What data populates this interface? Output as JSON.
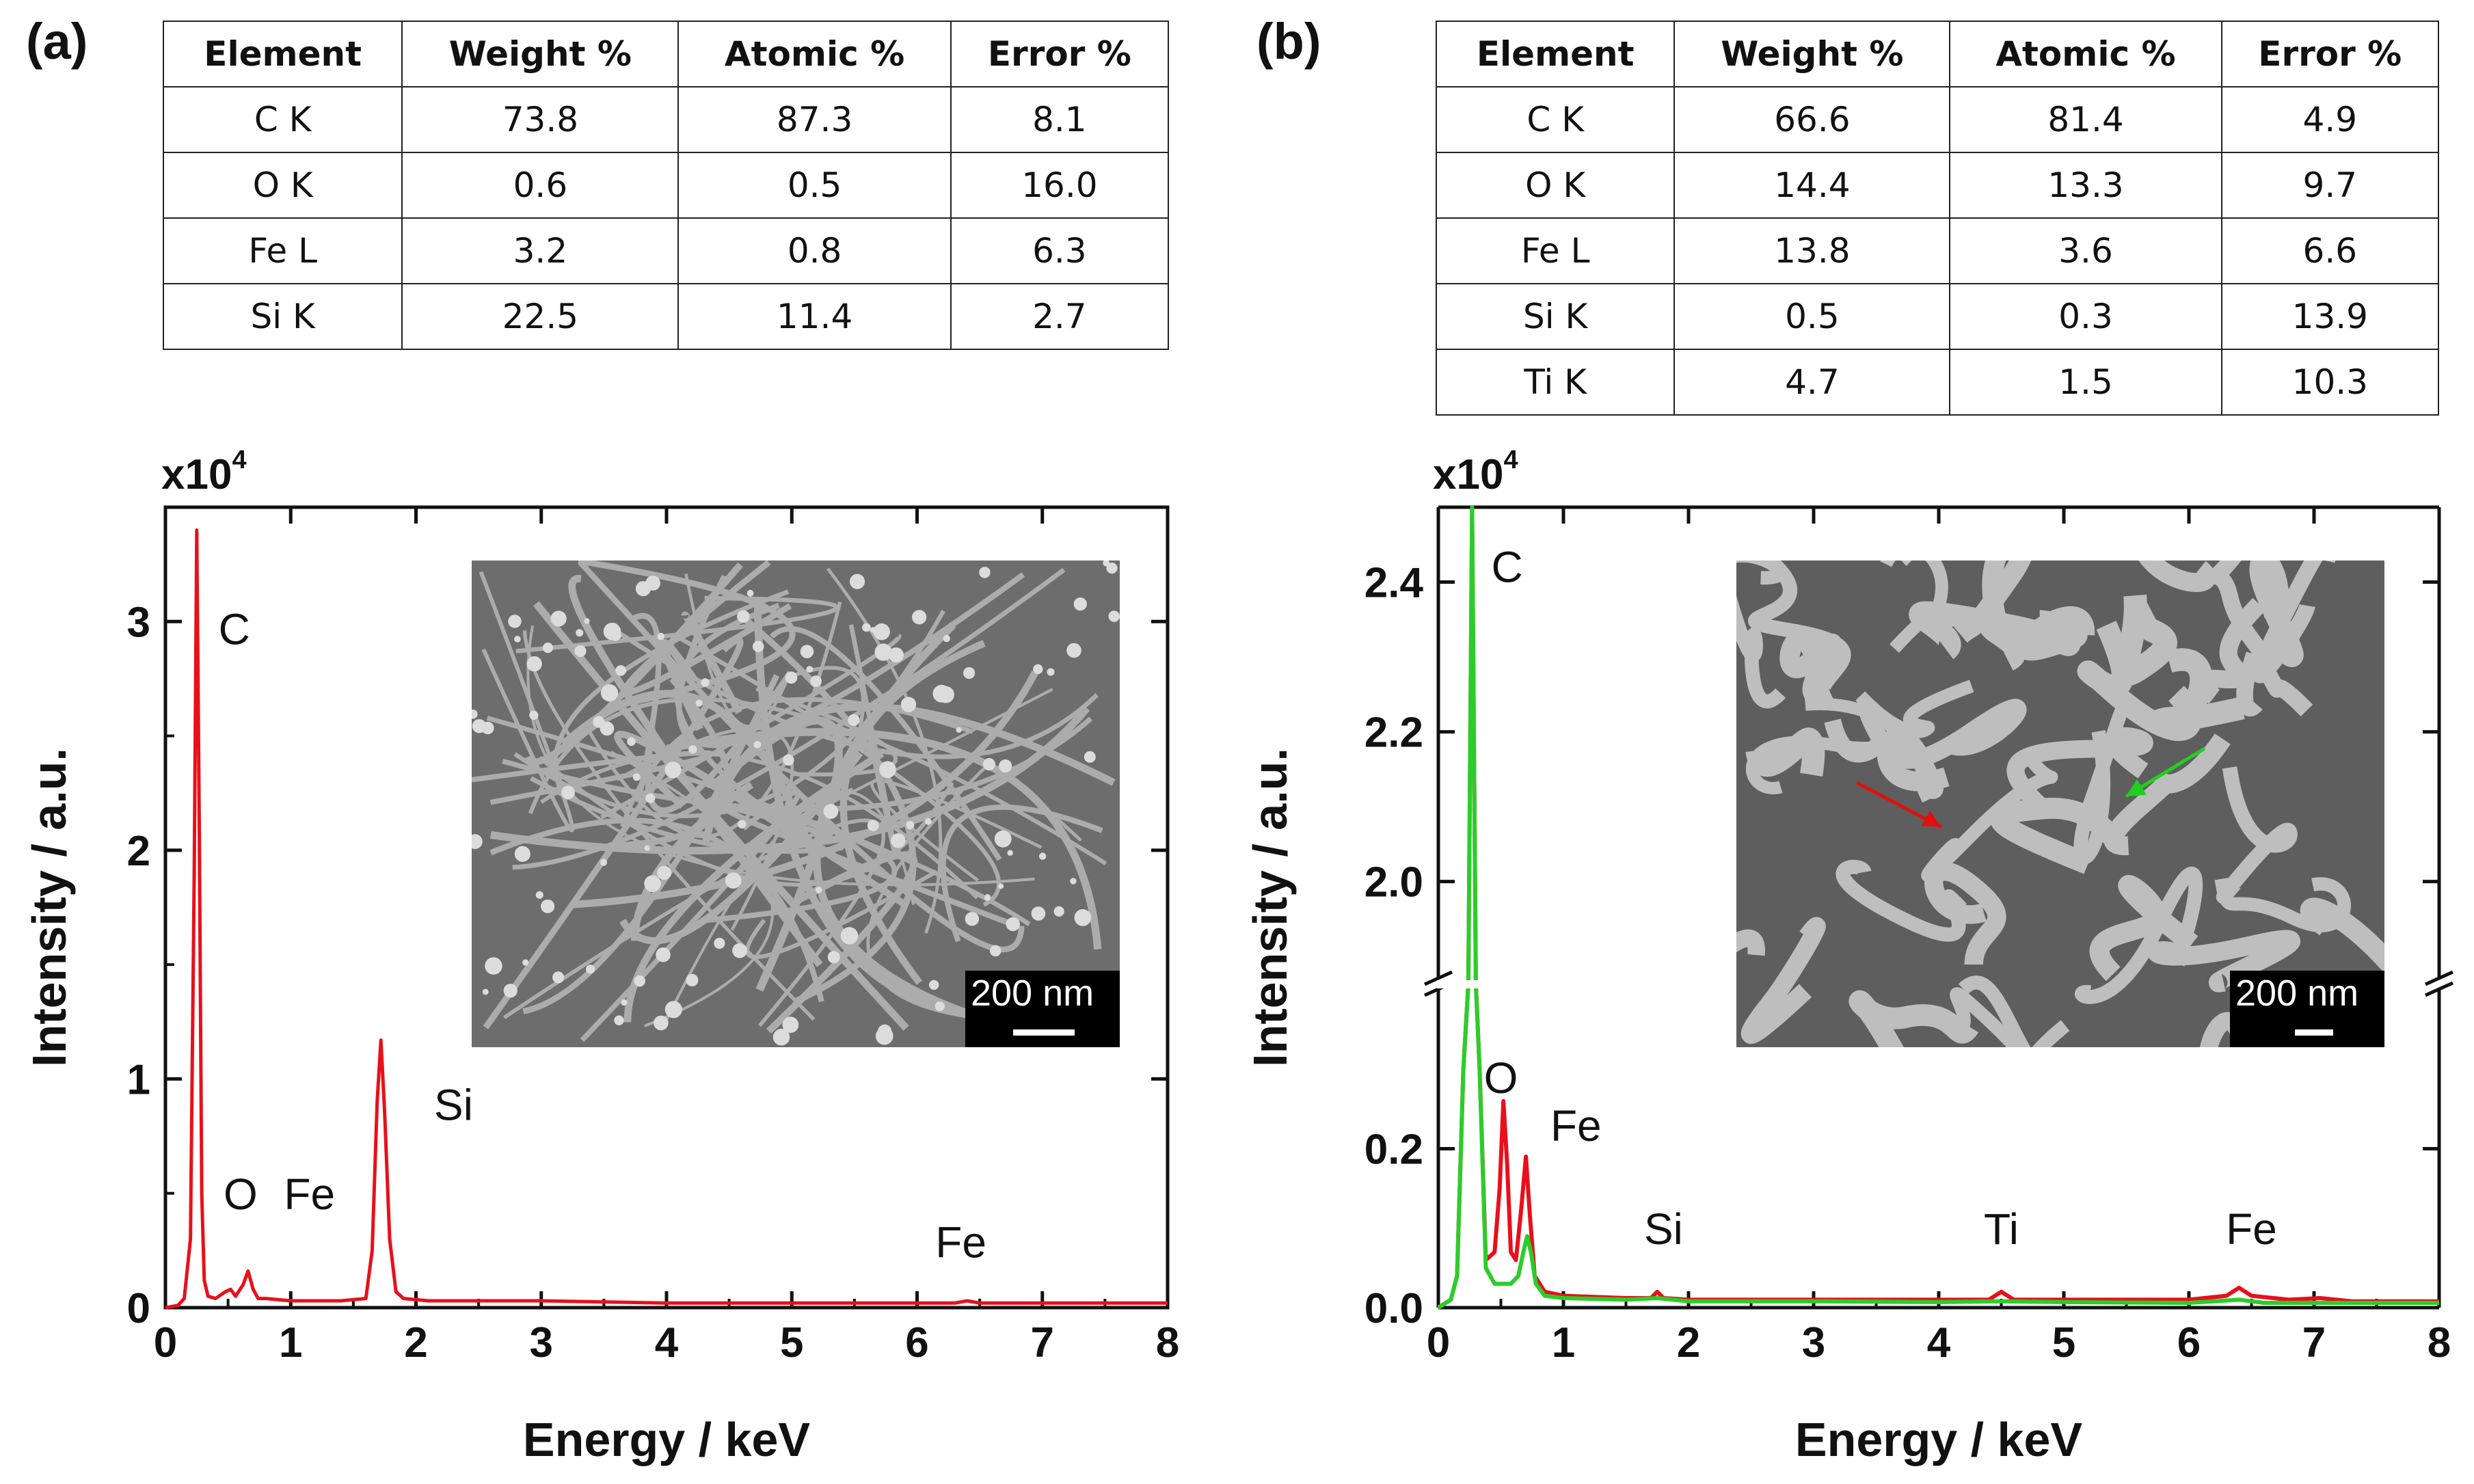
{
  "panels": [
    {
      "label": "(a)",
      "table": {
        "headers": [
          "Element",
          "Weight %",
          "Atomic %",
          "Error %"
        ],
        "rows": [
          [
            "C K",
            "73.8",
            "87.3",
            "8.1"
          ],
          [
            "O K",
            "0.6",
            "0.5",
            "16.0"
          ],
          [
            "Fe L",
            "3.2",
            "0.8",
            "6.3"
          ],
          [
            "Si K",
            "22.5",
            "11.4",
            "2.7"
          ]
        ]
      },
      "multiplier_base": "x10",
      "multiplier_exp": "4",
      "inset_scale": "200 nm"
    },
    {
      "label": "(b)",
      "table": {
        "headers": [
          "Element",
          "Weight %",
          "Atomic %",
          "Error %"
        ],
        "rows": [
          [
            "C K",
            "66.6",
            "81.4",
            "4.9"
          ],
          [
            "O K",
            "14.4",
            "13.3",
            "9.7"
          ],
          [
            "Fe L",
            "13.8",
            "3.6",
            "6.6"
          ],
          [
            "Si K",
            "0.5",
            "0.3",
            "13.9"
          ],
          [
            "Ti K",
            "4.7",
            "1.5",
            "10.3"
          ]
        ]
      },
      "multiplier_base": "x10",
      "multiplier_exp": "4",
      "inset_scale": "200 nm"
    }
  ],
  "chart_data": [
    {
      "type": "line",
      "title": "",
      "xlabel": "Energy / keV",
      "ylabel": "Intensity / a.u.",
      "y_unit_multiplier": "x10^4",
      "xlim": [
        0,
        8
      ],
      "ylim": [
        0,
        3.5
      ],
      "xticks": [
        0,
        1,
        2,
        3,
        4,
        5,
        6,
        7,
        8
      ],
      "yticks": [
        0,
        1,
        2,
        3
      ],
      "series": [
        {
          "name": "spectrum",
          "color": "#e8101a",
          "x": [
            0.0,
            0.1,
            0.15,
            0.2,
            0.23,
            0.25,
            0.27,
            0.29,
            0.31,
            0.34,
            0.4,
            0.48,
            0.52,
            0.56,
            0.62,
            0.66,
            0.7,
            0.74,
            0.8,
            1.0,
            1.4,
            1.6,
            1.65,
            1.69,
            1.72,
            1.75,
            1.79,
            1.84,
            1.9,
            2.1,
            3.0,
            4.0,
            5.0,
            6.0,
            6.3,
            6.4,
            6.5,
            6.7,
            7.0,
            8.0
          ],
          "y": [
            0.0,
            0.01,
            0.04,
            0.3,
            1.9,
            3.4,
            2.1,
            0.5,
            0.12,
            0.05,
            0.04,
            0.07,
            0.08,
            0.05,
            0.1,
            0.16,
            0.08,
            0.04,
            0.04,
            0.03,
            0.03,
            0.04,
            0.25,
            0.9,
            1.17,
            0.85,
            0.3,
            0.07,
            0.04,
            0.03,
            0.03,
            0.02,
            0.02,
            0.02,
            0.02,
            0.03,
            0.02,
            0.02,
            0.02,
            0.02
          ]
        }
      ],
      "annotations": [
        {
          "text": "C",
          "x": 0.55,
          "y": 2.9
        },
        {
          "text": "O",
          "x": 0.6,
          "y": 0.43
        },
        {
          "text": "Fe",
          "x": 1.15,
          "y": 0.43
        },
        {
          "text": "Si",
          "x": 2.3,
          "y": 0.82
        },
        {
          "text": "Fe",
          "x": 6.35,
          "y": 0.22
        }
      ]
    },
    {
      "type": "line",
      "title": "",
      "xlabel": "Energy / keV",
      "ylabel": "Intensity / a.u.",
      "y_unit_multiplier": "x10^4",
      "xlim": [
        0,
        8
      ],
      "axis_break": true,
      "ylim_lower": [
        0,
        0.4
      ],
      "ylim_upper": [
        1.87,
        2.5
      ],
      "xticks": [
        0,
        1,
        2,
        3,
        4,
        5,
        6,
        7,
        8
      ],
      "yticks_lower": [
        "0.0",
        "0.2"
      ],
      "yticks_upper": [
        "2.0",
        "2.2",
        "2.4"
      ],
      "series": [
        {
          "name": "red",
          "color": "#e8101a",
          "x": [
            0.0,
            0.1,
            0.15,
            0.2,
            0.24,
            0.27,
            0.3,
            0.33,
            0.38,
            0.45,
            0.49,
            0.52,
            0.55,
            0.58,
            0.62,
            0.66,
            0.7,
            0.73,
            0.77,
            0.85,
            1.0,
            1.5,
            1.7,
            1.75,
            1.8,
            2.0,
            3.0,
            4.0,
            4.4,
            4.5,
            4.6,
            4.8,
            5.0,
            6.0,
            6.3,
            6.4,
            6.5,
            6.8,
            7.05,
            7.3,
            8.0
          ],
          "y": [
            0.0,
            0.01,
            0.04,
            0.3,
            1.5,
            2.5,
            1.2,
            0.3,
            0.06,
            0.07,
            0.15,
            0.26,
            0.18,
            0.07,
            0.06,
            0.12,
            0.19,
            0.12,
            0.04,
            0.02,
            0.015,
            0.012,
            0.012,
            0.02,
            0.012,
            0.01,
            0.01,
            0.01,
            0.01,
            0.02,
            0.01,
            0.01,
            0.01,
            0.01,
            0.015,
            0.025,
            0.015,
            0.01,
            0.012,
            0.008,
            0.008
          ]
        },
        {
          "name": "green",
          "color": "#2bcd2b",
          "x": [
            0.0,
            0.1,
            0.15,
            0.2,
            0.24,
            0.27,
            0.3,
            0.33,
            0.38,
            0.45,
            0.52,
            0.58,
            0.64,
            0.68,
            0.71,
            0.74,
            0.78,
            0.85,
            1.0,
            1.5,
            1.75,
            2.0,
            3.0,
            4.0,
            4.5,
            5.0,
            6.0,
            6.4,
            6.6,
            7.0,
            8.0
          ],
          "y": [
            0.0,
            0.01,
            0.04,
            0.3,
            1.5,
            2.5,
            1.2,
            0.3,
            0.05,
            0.03,
            0.03,
            0.03,
            0.04,
            0.07,
            0.09,
            0.07,
            0.03,
            0.015,
            0.012,
            0.01,
            0.012,
            0.008,
            0.008,
            0.007,
            0.008,
            0.007,
            0.006,
            0.01,
            0.006,
            0.006,
            0.006
          ]
        }
      ],
      "annotations": [
        {
          "text": "C",
          "x": 0.55,
          "y": 2.4,
          "axis": "upper"
        },
        {
          "text": "O",
          "x": 0.5,
          "y": 0.27,
          "axis": "lower"
        },
        {
          "text": "Fe",
          "x": 1.1,
          "y": 0.21,
          "axis": "lower"
        },
        {
          "text": "Si",
          "x": 1.8,
          "y": 0.08,
          "axis": "lower"
        },
        {
          "text": "Ti",
          "x": 4.5,
          "y": 0.08,
          "axis": "lower"
        },
        {
          "text": "Fe",
          "x": 6.5,
          "y": 0.08,
          "axis": "lower"
        }
      ]
    }
  ]
}
